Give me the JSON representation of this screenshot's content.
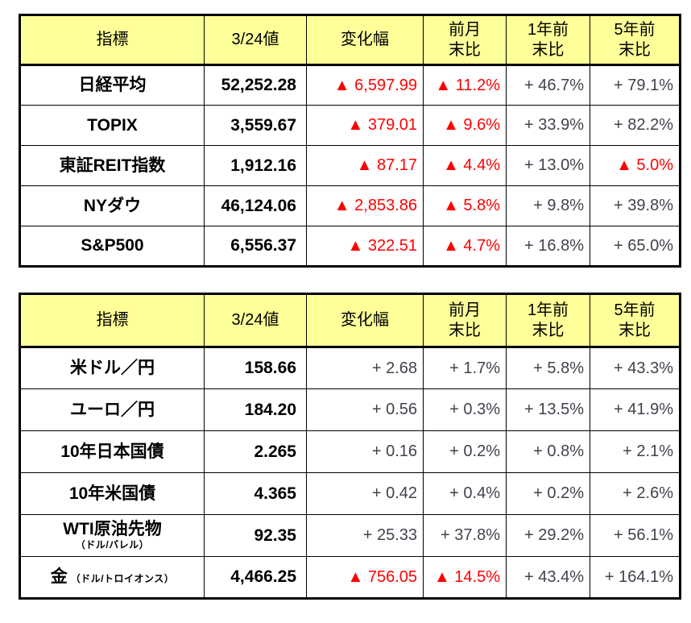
{
  "colors": {
    "header_background": "#FFFF99",
    "negative_text": "#FF0000",
    "positive_text": "#3F434C",
    "label_text": "#000000",
    "border": "#000000"
  },
  "chart_data": [
    {
      "type": "table",
      "columns": [
        "指標",
        "3/24値",
        "変化幅",
        "前月\n末比",
        "1年前\n末比",
        "5年前\n末比"
      ],
      "rows": [
        {
          "label": "日経平均",
          "note": "",
          "note_layout": "none",
          "value": "52,252.28",
          "changes": [
            {
              "text": "▲ 6,597.99",
              "negative": true
            },
            {
              "text": "▲ 11.2%",
              "negative": true
            },
            {
              "text": "+ 46.7%",
              "negative": false
            },
            {
              "text": "+ 79.1%",
              "negative": false
            }
          ]
        },
        {
          "label": "TOPIX",
          "note": "",
          "note_layout": "none",
          "value": "3,559.67",
          "changes": [
            {
              "text": "▲ 379.01",
              "negative": true
            },
            {
              "text": "▲ 9.6%",
              "negative": true
            },
            {
              "text": "+ 33.9%",
              "negative": false
            },
            {
              "text": "+ 82.2%",
              "negative": false
            }
          ]
        },
        {
          "label": "東証REIT指数",
          "note": "",
          "note_layout": "none",
          "value": "1,912.16",
          "changes": [
            {
              "text": "▲ 87.17",
              "negative": true
            },
            {
              "text": "▲ 4.4%",
              "negative": true
            },
            {
              "text": "+ 13.0%",
              "negative": false
            },
            {
              "text": "▲ 5.0%",
              "negative": true
            }
          ]
        },
        {
          "label": "NYダウ",
          "note": "",
          "note_layout": "none",
          "value": "46,124.06",
          "changes": [
            {
              "text": "▲ 2,853.86",
              "negative": true
            },
            {
              "text": "▲ 5.8%",
              "negative": true
            },
            {
              "text": "+ 9.8%",
              "negative": false
            },
            {
              "text": "+ 39.8%",
              "negative": false
            }
          ]
        },
        {
          "label": "S&P500",
          "note": "",
          "note_layout": "none",
          "value": "6,556.37",
          "changes": [
            {
              "text": "▲ 322.51",
              "negative": true
            },
            {
              "text": "▲ 4.7%",
              "negative": true
            },
            {
              "text": "+ 16.8%",
              "negative": false
            },
            {
              "text": "+ 65.0%",
              "negative": false
            }
          ]
        }
      ]
    },
    {
      "type": "table",
      "columns": [
        "指標",
        "3/24値",
        "変化幅",
        "前月\n末比",
        "1年前\n末比",
        "5年前\n末比"
      ],
      "rows": [
        {
          "label": "米ドル／円",
          "note": "",
          "note_layout": "none",
          "value": "158.66",
          "changes": [
            {
              "text": "+ 2.68",
              "negative": false
            },
            {
              "text": "+ 1.7%",
              "negative": false
            },
            {
              "text": "+ 5.8%",
              "negative": false
            },
            {
              "text": "+ 43.3%",
              "negative": false
            }
          ]
        },
        {
          "label": "ユーロ／円",
          "note": "",
          "note_layout": "none",
          "value": "184.20",
          "changes": [
            {
              "text": "+ 0.56",
              "negative": false
            },
            {
              "text": "+ 0.3%",
              "negative": false
            },
            {
              "text": "+ 13.5%",
              "negative": false
            },
            {
              "text": "+ 41.9%",
              "negative": false
            }
          ]
        },
        {
          "label": "10年日本国債",
          "note": "",
          "note_layout": "none",
          "value": "2.265",
          "changes": [
            {
              "text": "+ 0.16",
              "negative": false
            },
            {
              "text": "+ 0.2%",
              "negative": false
            },
            {
              "text": "+ 0.8%",
              "negative": false
            },
            {
              "text": "+ 2.1%",
              "negative": false
            }
          ]
        },
        {
          "label": "10年米国債",
          "note": "",
          "note_layout": "none",
          "value": "4.365",
          "changes": [
            {
              "text": "+ 0.42",
              "negative": false
            },
            {
              "text": "+ 0.4%",
              "negative": false
            },
            {
              "text": "+ 0.2%",
              "negative": false
            },
            {
              "text": "+ 2.6%",
              "negative": false
            }
          ]
        },
        {
          "label": "WTI原油先物",
          "note": "（ドル/バレル）",
          "note_layout": "stack",
          "value": "92.35",
          "changes": [
            {
              "text": "+ 25.33",
              "negative": false
            },
            {
              "text": "+ 37.8%",
              "negative": false
            },
            {
              "text": "+ 29.2%",
              "negative": false
            },
            {
              "text": "+ 56.1%",
              "negative": false
            }
          ]
        },
        {
          "label": "金",
          "note": "（ドル/トロイオンス）",
          "note_layout": "inline",
          "value": "4,466.25",
          "changes": [
            {
              "text": "▲ 756.05",
              "negative": true
            },
            {
              "text": "▲ 14.5%",
              "negative": true
            },
            {
              "text": "+ 43.4%",
              "negative": false
            },
            {
              "text": "+ 164.1%",
              "negative": false
            }
          ]
        }
      ]
    }
  ]
}
